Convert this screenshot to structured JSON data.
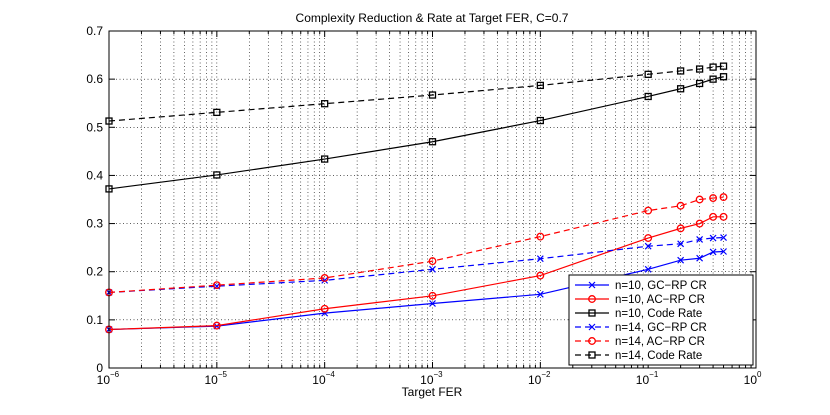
{
  "chart_data": {
    "type": "line",
    "title": "Complexity Reduction & Rate at Target FER, C=0.7",
    "xlabel": "Target FER",
    "ylabel": "",
    "xscale": "log",
    "xlim": [
      1e-06,
      1
    ],
    "ylim": [
      0,
      0.7
    ],
    "grid": true,
    "legend_position": "bottom-right",
    "x_tick_labels": [
      {
        "value": 1e-06,
        "base": "10",
        "exp": "−6"
      },
      {
        "value": 1e-05,
        "base": "10",
        "exp": "−5"
      },
      {
        "value": 0.0001,
        "base": "10",
        "exp": "−4"
      },
      {
        "value": 0.001,
        "base": "10",
        "exp": "−3"
      },
      {
        "value": 0.01,
        "base": "10",
        "exp": "−2"
      },
      {
        "value": 0.1,
        "base": "10",
        "exp": "−1"
      },
      {
        "value": 1,
        "base": "10",
        "exp": "0"
      }
    ],
    "y_tick_labels": [
      {
        "value": 0,
        "label": "0"
      },
      {
        "value": 0.1,
        "label": "0.1"
      },
      {
        "value": 0.2,
        "label": "0.2"
      },
      {
        "value": 0.3,
        "label": "0.3"
      },
      {
        "value": 0.4,
        "label": "0.4"
      },
      {
        "value": 0.5,
        "label": "0.5"
      },
      {
        "value": 0.6,
        "label": "0.6"
      },
      {
        "value": 0.7,
        "label": "0.7"
      }
    ],
    "x": [
      1e-06,
      1e-05,
      0.0001,
      0.001,
      0.01,
      0.1,
      0.2,
      0.3,
      0.4,
      0.5
    ],
    "series": [
      {
        "name": "n=10, GC−RP CR",
        "color": "#0000ff",
        "dash": "solid",
        "marker": "x",
        "values": [
          0.08,
          0.087,
          0.114,
          0.134,
          0.153,
          0.205,
          0.224,
          0.228,
          0.241,
          0.242
        ]
      },
      {
        "name": "n=10, AC−RP CR",
        "color": "#ff0000",
        "dash": "solid",
        "marker": "o",
        "values": [
          0.08,
          0.088,
          0.123,
          0.15,
          0.192,
          0.27,
          0.29,
          0.3,
          0.314,
          0.314
        ]
      },
      {
        "name": "n=10, Code Rate",
        "color": "#000000",
        "dash": "solid",
        "marker": "s",
        "values": [
          0.372,
          0.401,
          0.434,
          0.47,
          0.514,
          0.564,
          0.58,
          0.591,
          0.6,
          0.605
        ]
      },
      {
        "name": "n=14, GC−RP CR",
        "color": "#0000ff",
        "dash": "dashed",
        "marker": "x",
        "values": [
          0.157,
          0.17,
          0.182,
          0.205,
          0.227,
          0.253,
          0.258,
          0.267,
          0.27,
          0.271
        ]
      },
      {
        "name": "n=14, AC−RP CR",
        "color": "#ff0000",
        "dash": "dashed",
        "marker": "o",
        "values": [
          0.157,
          0.172,
          0.187,
          0.222,
          0.273,
          0.327,
          0.337,
          0.35,
          0.353,
          0.355
        ]
      },
      {
        "name": "n=14, Code Rate",
        "color": "#000000",
        "dash": "dashed",
        "marker": "s",
        "values": [
          0.513,
          0.531,
          0.549,
          0.567,
          0.587,
          0.61,
          0.617,
          0.621,
          0.625,
          0.627
        ]
      }
    ]
  }
}
